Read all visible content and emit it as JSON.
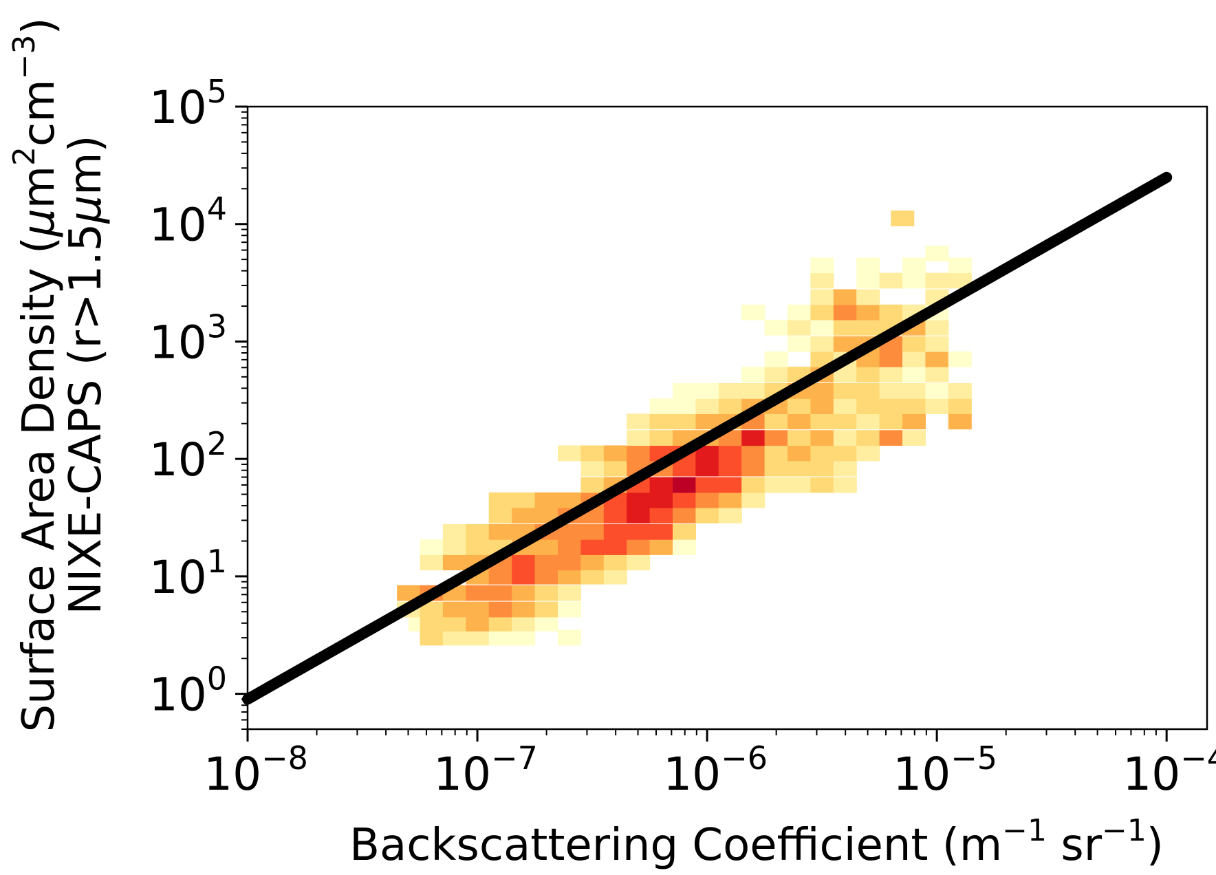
{
  "chart_data": {
    "type": "heatmap",
    "subtype": "2d-histogram with fitted line",
    "title": "",
    "xlabel": {
      "main": "Backscattering Coefficient (m",
      "exp1": "−1",
      "mid": " sr",
      "exp2": "−1",
      "end": ")"
    },
    "ylabel": {
      "line1": {
        "a": "Surface Area Density (",
        "mu": "μ",
        "b": "m",
        "exp1": "2",
        "c": "cm",
        "exp2": "−3",
        "d": ")"
      },
      "line2": {
        "a": "NIXE-CAPS (r>1.5",
        "mu": "μ",
        "b": "m)"
      }
    },
    "x_scale": "log",
    "y_scale": "log",
    "xlim": [
      1e-08,
      0.00015
    ],
    "ylim": [
      0.5,
      100000
    ],
    "x_ticks": [
      {
        "value": 1e-08,
        "base": "10",
        "exp": "−8"
      },
      {
        "value": 1e-07,
        "base": "10",
        "exp": "−7"
      },
      {
        "value": 1e-06,
        "base": "10",
        "exp": "−6"
      },
      {
        "value": 1e-05,
        "base": "10",
        "exp": "−5"
      },
      {
        "value": 0.0001,
        "base": "10",
        "exp": "−4"
      }
    ],
    "y_ticks": [
      {
        "value": 1,
        "base": "10",
        "exp": "0"
      },
      {
        "value": 10,
        "base": "10",
        "exp": "1"
      },
      {
        "value": 100,
        "base": "10",
        "exp": "2"
      },
      {
        "value": 1000,
        "base": "10",
        "exp": "3"
      },
      {
        "value": 10000,
        "base": "10",
        "exp": "4"
      },
      {
        "value": 100000,
        "base": "10",
        "exp": "5"
      }
    ],
    "bin_log_step_x": 0.1,
    "bin_log_step_y": 0.13,
    "fit_line": {
      "x": [
        1e-08,
        0.0001
      ],
      "y": [
        0.9,
        25000
      ],
      "color": "#000000"
    },
    "colormap": [
      "#ffffcc",
      "#ffeda0",
      "#fed976",
      "#feb24c",
      "#fd8d3c",
      "#fc4e2a",
      "#e31a1c",
      "#bd0026"
    ],
    "bins": [
      [
        -7.25,
        0.78,
        1
      ],
      [
        -7.2,
        0.48,
        3
      ],
      [
        -7.1,
        0.48,
        2
      ],
      [
        -7.0,
        0.48,
        2
      ],
      [
        -6.9,
        0.48,
        1
      ],
      [
        -6.8,
        0.48,
        1
      ],
      [
        -6.6,
        0.48,
        1
      ],
      [
        -7.25,
        0.6,
        1
      ],
      [
        -7.2,
        0.6,
        3
      ],
      [
        -7.1,
        0.6,
        3
      ],
      [
        -7.0,
        0.6,
        4
      ],
      [
        -6.9,
        0.6,
        3
      ],
      [
        -6.8,
        0.6,
        2
      ],
      [
        -6.7,
        0.6,
        1
      ],
      [
        -7.3,
        0.72,
        2
      ],
      [
        -7.2,
        0.72,
        3
      ],
      [
        -7.1,
        0.72,
        4
      ],
      [
        -7.0,
        0.72,
        4
      ],
      [
        -6.9,
        0.72,
        5
      ],
      [
        -6.8,
        0.72,
        4
      ],
      [
        -6.7,
        0.72,
        3
      ],
      [
        -6.6,
        0.72,
        1
      ],
      [
        -7.3,
        0.86,
        4
      ],
      [
        -7.2,
        0.86,
        5
      ],
      [
        -7.1,
        0.86,
        4
      ],
      [
        -7.0,
        0.86,
        5
      ],
      [
        -6.9,
        0.86,
        5
      ],
      [
        -6.8,
        0.86,
        4
      ],
      [
        -6.7,
        0.86,
        3
      ],
      [
        -6.6,
        0.86,
        2
      ],
      [
        -7.0,
        1.0,
        4
      ],
      [
        -6.9,
        1.0,
        5
      ],
      [
        -6.8,
        1.0,
        6
      ],
      [
        -6.7,
        1.0,
        5
      ],
      [
        -6.6,
        1.0,
        4
      ],
      [
        -6.5,
        1.0,
        3
      ],
      [
        -6.4,
        1.0,
        2
      ],
      [
        -7.2,
        1.12,
        2
      ],
      [
        -7.1,
        1.12,
        4
      ],
      [
        -7.0,
        1.12,
        4
      ],
      [
        -6.9,
        1.12,
        5
      ],
      [
        -6.8,
        1.12,
        6
      ],
      [
        -6.7,
        1.12,
        5
      ],
      [
        -6.6,
        1.12,
        5
      ],
      [
        -6.5,
        1.12,
        4
      ],
      [
        -6.4,
        1.12,
        3
      ],
      [
        -6.3,
        1.12,
        2
      ],
      [
        -7.2,
        1.25,
        1
      ],
      [
        -7.1,
        1.25,
        2
      ],
      [
        -7.0,
        1.25,
        3
      ],
      [
        -6.9,
        1.25,
        3
      ],
      [
        -6.8,
        1.25,
        4
      ],
      [
        -6.7,
        1.25,
        4
      ],
      [
        -6.6,
        1.25,
        5
      ],
      [
        -6.5,
        1.25,
        6
      ],
      [
        -6.4,
        1.25,
        6
      ],
      [
        -6.3,
        1.25,
        5
      ],
      [
        -6.2,
        1.25,
        4
      ],
      [
        -6.1,
        1.25,
        1
      ],
      [
        -7.1,
        1.38,
        2
      ],
      [
        -7.0,
        1.38,
        3
      ],
      [
        -6.9,
        1.38,
        4
      ],
      [
        -6.8,
        1.38,
        4
      ],
      [
        -6.7,
        1.38,
        5
      ],
      [
        -6.6,
        1.38,
        5
      ],
      [
        -6.5,
        1.38,
        5
      ],
      [
        -6.4,
        1.38,
        6
      ],
      [
        -6.3,
        1.38,
        6
      ],
      [
        -6.2,
        1.38,
        6
      ],
      [
        -6.1,
        1.38,
        3
      ],
      [
        -6.9,
        1.52,
        3
      ],
      [
        -6.8,
        1.52,
        4
      ],
      [
        -6.7,
        1.52,
        4
      ],
      [
        -6.6,
        1.52,
        5
      ],
      [
        -6.5,
        1.52,
        5
      ],
      [
        -6.4,
        1.52,
        6
      ],
      [
        -6.3,
        1.52,
        7
      ],
      [
        -6.2,
        1.52,
        6
      ],
      [
        -6.1,
        1.52,
        5
      ],
      [
        -6.0,
        1.52,
        3
      ],
      [
        -5.9,
        1.52,
        2
      ],
      [
        -6.9,
        1.65,
        3
      ],
      [
        -6.8,
        1.65,
        3
      ],
      [
        -6.7,
        1.65,
        4
      ],
      [
        -6.6,
        1.65,
        4
      ],
      [
        -6.5,
        1.65,
        5
      ],
      [
        -6.4,
        1.65,
        6
      ],
      [
        -6.3,
        1.65,
        7
      ],
      [
        -6.2,
        1.65,
        7
      ],
      [
        -6.1,
        1.65,
        6
      ],
      [
        -6.0,
        1.65,
        5
      ],
      [
        -5.9,
        1.65,
        4
      ],
      [
        -5.8,
        1.65,
        2
      ],
      [
        -6.5,
        1.78,
        3
      ],
      [
        -6.4,
        1.78,
        4
      ],
      [
        -6.3,
        1.78,
        6
      ],
      [
        -6.2,
        1.78,
        7
      ],
      [
        -6.1,
        1.78,
        8
      ],
      [
        -6.0,
        1.78,
        6
      ],
      [
        -5.9,
        1.78,
        6
      ],
      [
        -5.8,
        1.78,
        3
      ],
      [
        -5.7,
        1.78,
        2
      ],
      [
        -5.6,
        1.78,
        2
      ],
      [
        -5.5,
        1.78,
        3
      ],
      [
        -5.4,
        1.78,
        2
      ],
      [
        -6.5,
        1.92,
        2
      ],
      [
        -6.4,
        1.92,
        3
      ],
      [
        -6.3,
        1.92,
        5
      ],
      [
        -6.2,
        1.92,
        5
      ],
      [
        -6.1,
        1.92,
        6
      ],
      [
        -6.0,
        1.92,
        7
      ],
      [
        -5.9,
        1.92,
        6
      ],
      [
        -5.8,
        1.92,
        5
      ],
      [
        -5.7,
        1.92,
        3
      ],
      [
        -5.6,
        1.92,
        3
      ],
      [
        -5.5,
        1.92,
        3
      ],
      [
        -5.4,
        1.92,
        2
      ],
      [
        -6.6,
        2.05,
        2
      ],
      [
        -6.5,
        2.05,
        3
      ],
      [
        -6.4,
        2.05,
        4
      ],
      [
        -6.3,
        2.05,
        5
      ],
      [
        -6.2,
        2.05,
        6
      ],
      [
        -6.1,
        2.05,
        6
      ],
      [
        -6.0,
        2.05,
        7
      ],
      [
        -5.9,
        2.05,
        6
      ],
      [
        -5.8,
        2.05,
        5
      ],
      [
        -5.7,
        2.05,
        3
      ],
      [
        -5.6,
        2.05,
        4
      ],
      [
        -5.5,
        2.05,
        3
      ],
      [
        -5.4,
        2.05,
        3
      ],
      [
        -5.3,
        2.05,
        2
      ],
      [
        -6.3,
        2.18,
        2
      ],
      [
        -6.2,
        2.18,
        3
      ],
      [
        -6.1,
        2.18,
        4
      ],
      [
        -6.0,
        2.18,
        4
      ],
      [
        -5.9,
        2.18,
        5
      ],
      [
        -5.8,
        2.18,
        7
      ],
      [
        -5.7,
        2.18,
        5
      ],
      [
        -5.6,
        2.18,
        3
      ],
      [
        -5.5,
        2.18,
        4
      ],
      [
        -5.4,
        2.18,
        2
      ],
      [
        -5.3,
        2.18,
        3
      ],
      [
        -5.2,
        2.18,
        5
      ],
      [
        -5.1,
        2.18,
        2
      ],
      [
        -6.3,
        2.32,
        2
      ],
      [
        -6.2,
        2.32,
        3
      ],
      [
        -6.1,
        2.32,
        3
      ],
      [
        -6.0,
        2.32,
        4
      ],
      [
        -5.9,
        2.32,
        4
      ],
      [
        -5.8,
        2.32,
        5
      ],
      [
        -5.7,
        2.32,
        3
      ],
      [
        -5.6,
        2.32,
        4
      ],
      [
        -5.5,
        2.32,
        3
      ],
      [
        -5.4,
        2.32,
        3
      ],
      [
        -5.3,
        2.32,
        2
      ],
      [
        -5.2,
        2.32,
        3
      ],
      [
        -5.1,
        2.32,
        4
      ],
      [
        -4.9,
        2.32,
        4
      ],
      [
        -6.2,
        2.45,
        1
      ],
      [
        -6.1,
        2.45,
        1
      ],
      [
        -6.0,
        2.45,
        2
      ],
      [
        -5.9,
        2.45,
        3
      ],
      [
        -5.8,
        2.45,
        4
      ],
      [
        -5.7,
        2.45,
        4
      ],
      [
        -5.6,
        2.45,
        3
      ],
      [
        -5.5,
        2.45,
        4
      ],
      [
        -5.4,
        2.45,
        2
      ],
      [
        -5.3,
        2.45,
        3
      ],
      [
        -5.2,
        2.45,
        3
      ],
      [
        -5.1,
        2.45,
        3
      ],
      [
        -5.0,
        2.45,
        2
      ],
      [
        -4.9,
        2.45,
        3
      ],
      [
        -6.1,
        2.58,
        1
      ],
      [
        -6.0,
        2.58,
        1
      ],
      [
        -5.9,
        2.58,
        2
      ],
      [
        -5.8,
        2.58,
        2
      ],
      [
        -5.7,
        2.58,
        3
      ],
      [
        -5.6,
        2.58,
        4
      ],
      [
        -5.5,
        2.58,
        4
      ],
      [
        -5.4,
        2.58,
        3
      ],
      [
        -5.3,
        2.58,
        3
      ],
      [
        -5.2,
        2.58,
        2
      ],
      [
        -5.1,
        2.58,
        2
      ],
      [
        -5.0,
        2.58,
        1
      ],
      [
        -4.9,
        2.58,
        2
      ],
      [
        -5.8,
        2.72,
        1
      ],
      [
        -5.7,
        2.72,
        2
      ],
      [
        -5.6,
        2.72,
        3
      ],
      [
        -5.5,
        2.72,
        4
      ],
      [
        -5.4,
        2.72,
        2
      ],
      [
        -5.3,
        2.72,
        3
      ],
      [
        -5.2,
        2.72,
        2
      ],
      [
        -5.1,
        2.72,
        1
      ],
      [
        -5.0,
        2.72,
        2
      ],
      [
        -5.7,
        2.85,
        1
      ],
      [
        -5.5,
        2.85,
        3
      ],
      [
        -5.4,
        2.85,
        2
      ],
      [
        -5.3,
        2.85,
        4
      ],
      [
        -5.2,
        2.85,
        5
      ],
      [
        -5.1,
        2.85,
        2
      ],
      [
        -5.0,
        2.85,
        4
      ],
      [
        -4.9,
        2.85,
        1
      ],
      [
        -5.6,
        2.98,
        1
      ],
      [
        -5.5,
        2.98,
        2
      ],
      [
        -5.4,
        2.98,
        4
      ],
      [
        -5.3,
        2.98,
        4
      ],
      [
        -5.2,
        2.98,
        5
      ],
      [
        -5.1,
        2.98,
        3
      ],
      [
        -5.0,
        2.98,
        2
      ],
      [
        -5.7,
        3.12,
        1
      ],
      [
        -5.6,
        3.12,
        2
      ],
      [
        -5.5,
        3.12,
        1
      ],
      [
        -5.4,
        3.12,
        3
      ],
      [
        -5.3,
        3.12,
        3
      ],
      [
        -5.2,
        3.12,
        3
      ],
      [
        -5.1,
        3.12,
        4
      ],
      [
        -5.0,
        3.12,
        2
      ],
      [
        -5.8,
        3.25,
        1
      ],
      [
        -5.6,
        3.25,
        1
      ],
      [
        -5.5,
        3.25,
        3
      ],
      [
        -5.4,
        3.25,
        5
      ],
      [
        -5.3,
        3.25,
        4
      ],
      [
        -5.2,
        3.25,
        3
      ],
      [
        -5.1,
        3.25,
        2
      ],
      [
        -5.0,
        3.25,
        1
      ],
      [
        -5.5,
        3.38,
        2
      ],
      [
        -5.4,
        3.38,
        4
      ],
      [
        -5.3,
        3.38,
        2
      ],
      [
        -5.0,
        3.38,
        2
      ],
      [
        -5.5,
        3.52,
        2
      ],
      [
        -5.3,
        3.52,
        1
      ],
      [
        -5.2,
        3.52,
        2
      ],
      [
        -5.1,
        3.52,
        1
      ],
      [
        -5.0,
        3.52,
        2
      ],
      [
        -4.9,
        3.52,
        2
      ],
      [
        -5.5,
        3.65,
        1
      ],
      [
        -5.3,
        3.65,
        1
      ],
      [
        -5.1,
        3.65,
        1
      ],
      [
        -4.9,
        3.65,
        1
      ],
      [
        -5.0,
        3.75,
        1
      ],
      [
        -5.15,
        4.05,
        3
      ]
    ]
  }
}
